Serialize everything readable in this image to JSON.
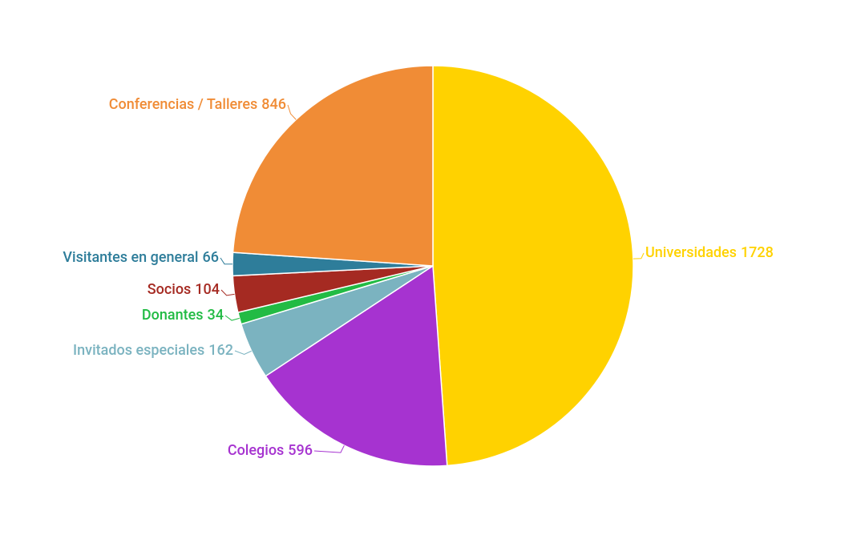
{
  "chart_data": {
    "type": "pie",
    "categories": [
      "Universidades",
      "Colegios",
      "Invitados especiales",
      "Donantes",
      "Socios",
      "Visitantes en general",
      "Conferencias / Talleres"
    ],
    "values": [
      1728,
      596,
      162,
      34,
      104,
      66,
      846
    ],
    "colors": [
      "#ffd200",
      "#a633d0",
      "#7bb3c0",
      "#22bb44",
      "#a52a22",
      "#2e7d9a",
      "#f08c36"
    ]
  }
}
